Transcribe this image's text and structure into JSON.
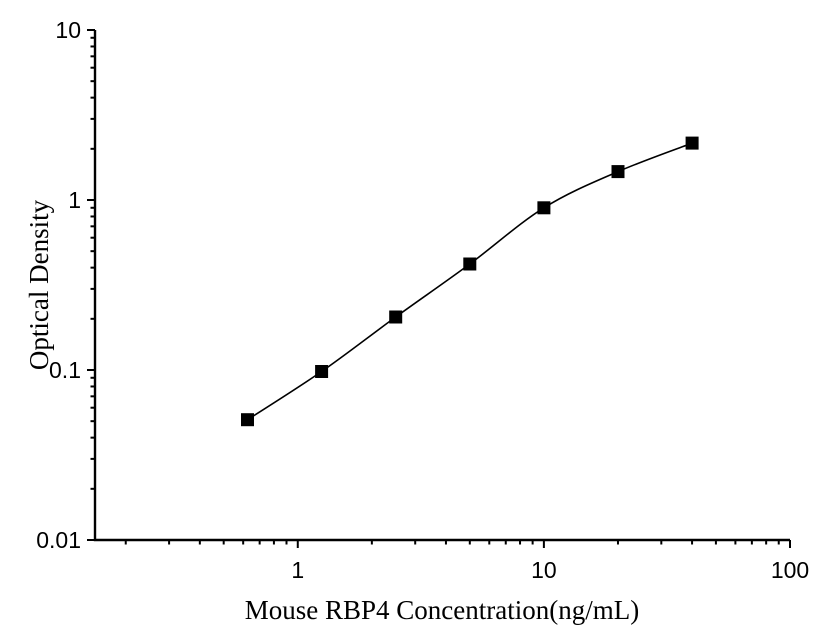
{
  "page": {
    "background": "#ffffff"
  },
  "chart_data": {
    "type": "line",
    "title": "",
    "xlabel": "Mouse RBP4 Concentration(ng/mL)",
    "ylabel": "Optical Density",
    "x_scale": "log",
    "y_scale": "log",
    "xlim": [
      0.15,
      100
    ],
    "ylim": [
      0.01,
      10
    ],
    "grid": false,
    "legend": "none",
    "x_major_ticks": {
      "values": [
        1,
        10,
        100
      ],
      "labels": [
        "1",
        "10",
        "100"
      ]
    },
    "y_major_ticks": {
      "values": [
        10,
        1,
        0.1,
        0.01
      ],
      "labels": [
        "10",
        "1",
        "0.1",
        "0.01"
      ]
    },
    "series": [
      {
        "x": [
          0.625,
          1.25,
          2.5,
          5,
          10,
          20,
          40
        ],
        "y": [
          0.051,
          0.098,
          0.205,
          0.42,
          0.9,
          1.47,
          2.16
        ],
        "marker": "filled-square",
        "marker_size": 13,
        "line_color": "#000000",
        "marker_color": "#000000"
      }
    ],
    "colors": {
      "axis": "#000000",
      "text": "#000000",
      "background": "#ffffff"
    }
  }
}
